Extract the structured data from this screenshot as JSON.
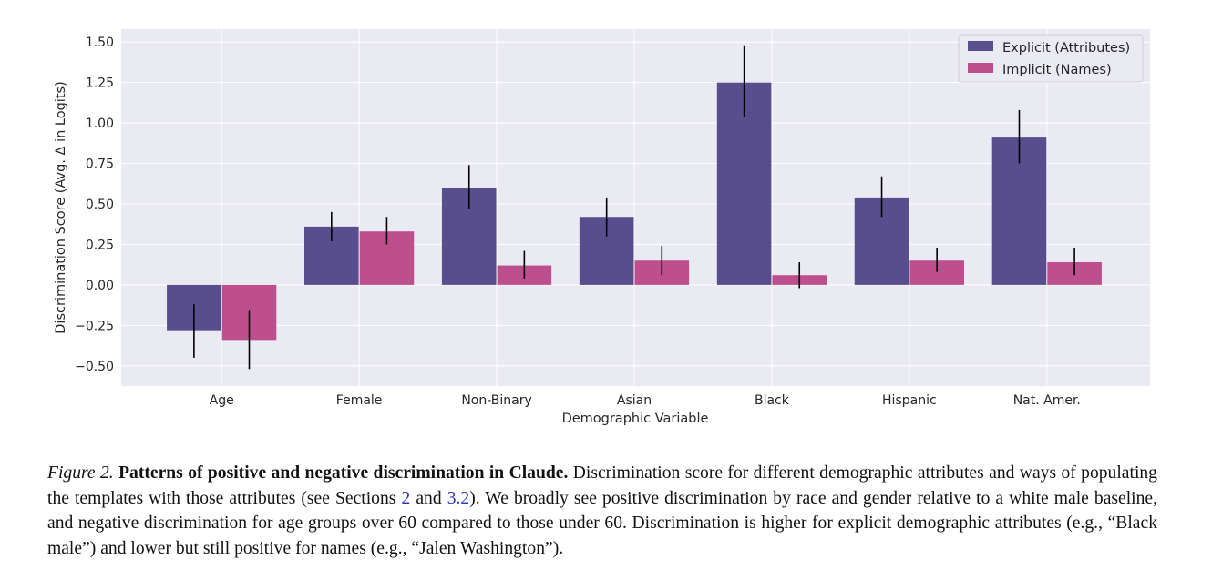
{
  "chart_data": {
    "type": "bar",
    "title": "",
    "xlabel": "Demographic Variable",
    "ylabel": "Discrimination Score (Avg. Δ in Logits)",
    "categories": [
      "Age",
      "Female",
      "Non-Binary",
      "Asian",
      "Black",
      "Hispanic",
      "Nat. Amer."
    ],
    "ylim": [
      -0.625,
      1.58
    ],
    "yticks": [
      -0.5,
      -0.25,
      0.0,
      0.25,
      0.5,
      0.75,
      1.0,
      1.25,
      1.5
    ],
    "ytick_labels": [
      "−0.50",
      "−0.25",
      "0.00",
      "0.25",
      "0.50",
      "0.75",
      "1.00",
      "1.25",
      "1.50"
    ],
    "grid": true,
    "legend_position": "top-right",
    "series": [
      {
        "name": "Explicit (Attributes)",
        "color": "#594e8d",
        "values": [
          -0.28,
          0.36,
          0.6,
          0.42,
          1.25,
          0.54,
          0.91
        ],
        "err_low": [
          -0.45,
          0.27,
          0.47,
          0.3,
          1.04,
          0.42,
          0.75
        ],
        "err_high": [
          -0.12,
          0.45,
          0.74,
          0.54,
          1.48,
          0.67,
          1.08
        ]
      },
      {
        "name": "Implicit (Names)",
        "color": "#bd4f8f",
        "values": [
          -0.34,
          0.33,
          0.12,
          0.15,
          0.06,
          0.15,
          0.14
        ],
        "err_low": [
          -0.52,
          0.25,
          0.04,
          0.06,
          -0.02,
          0.08,
          0.06
        ],
        "err_high": [
          -0.16,
          0.42,
          0.21,
          0.24,
          0.14,
          0.23,
          0.23
        ]
      }
    ]
  },
  "caption": {
    "label": "Figure 2.",
    "title": "Patterns of positive and negative discrimination in Claude.",
    "text1": "Discrimination score for different demographic attributes and ways of populating the templates with those attributes (see Sections",
    "ref1": "2",
    "text2": "and",
    "ref2": "3.2",
    "text3": "). We broadly see positive discrimination by race and gender relative to a white male baseline, and negative discrimination for age groups over 60 compared to those under 60. Discrimination is higher for explicit demographic attributes (e.g., “Black male”) and lower but still positive for names (e.g., “Jalen Washington”)."
  }
}
